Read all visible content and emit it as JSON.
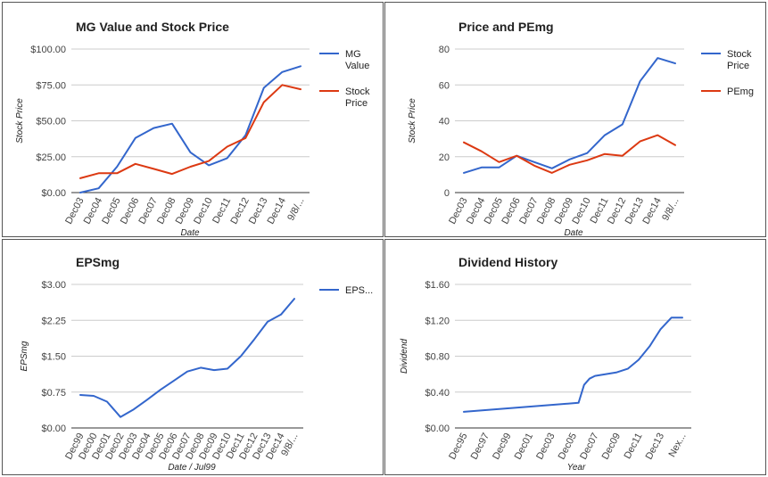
{
  "colors": {
    "blue": "#3366cc",
    "red": "#dc3912"
  },
  "chart_data": [
    {
      "type": "line",
      "title": "MG Value and Stock Price",
      "xlabel": "Date",
      "ylabel": "Stock Price",
      "categories": [
        "Dec03",
        "Dec04",
        "Dec05",
        "Dec06",
        "Dec07",
        "Dec08",
        "Dec09",
        "Dec10",
        "Dec11",
        "Dec12",
        "Dec13",
        "Dec14",
        "9/8/..."
      ],
      "yticks": [
        "$0.00",
        "$25.00",
        "$50.00",
        "$75.00",
        "$100.00"
      ],
      "ylim": [
        0,
        100
      ],
      "grid": true,
      "legend": "right",
      "series": [
        {
          "name": "MG Value",
          "color": "#3366cc",
          "values": [
            0,
            3,
            18,
            38,
            45,
            48,
            28,
            19,
            24,
            40,
            73,
            84,
            88
          ]
        },
        {
          "name": "Stock Price",
          "color": "#dc3912",
          "values": [
            10,
            13.5,
            13.5,
            20,
            16.5,
            13,
            18,
            22,
            32,
            38,
            63,
            75,
            72
          ]
        }
      ]
    },
    {
      "type": "line",
      "title": "Price and PEmg",
      "xlabel": "Date",
      "ylabel": "Stock Price",
      "categories": [
        "Dec03",
        "Dec04",
        "Dec05",
        "Dec06",
        "Dec07",
        "Dec08",
        "Dec09",
        "Dec10",
        "Dec11",
        "Dec12",
        "Dec13",
        "Dec14",
        "9/8/..."
      ],
      "yticks": [
        "0",
        "20",
        "40",
        "60",
        "80"
      ],
      "ylim": [
        0,
        80
      ],
      "grid": true,
      "legend": "right",
      "series": [
        {
          "name": "Stock Price",
          "color": "#3366cc",
          "values": [
            11,
            14,
            14,
            20.5,
            17,
            13.5,
            18.5,
            22,
            32,
            38,
            62,
            75,
            72
          ]
        },
        {
          "name": "PEmg",
          "color": "#dc3912",
          "values": [
            28,
            23,
            17,
            20.5,
            15,
            11,
            15.5,
            18,
            21.5,
            20.5,
            28.5,
            32,
            26.5
          ]
        }
      ]
    },
    {
      "type": "line",
      "title": "EPSmg",
      "xlabel": "Date / Jul99",
      "ylabel": "EPSmg",
      "categories": [
        "Dec99",
        "Dec00",
        "Dec01",
        "Dec02",
        "Dec03",
        "Dec04",
        "Dec05",
        "Dec06",
        "Dec07",
        "Dec08",
        "Dec09",
        "Dec10",
        "Dec11",
        "Dec12",
        "Dec13",
        "Dec14",
        "9/8/..."
      ],
      "yticks": [
        "$0.00",
        "$0.75",
        "$1.50",
        "$2.25",
        "$3.00"
      ],
      "ylim": [
        0,
        3
      ],
      "grid": true,
      "legend": "right",
      "series": [
        {
          "name": "EPS...",
          "color": "#3366cc",
          "values": [
            0.69,
            0.67,
            0.55,
            0.23,
            0.39,
            0.59,
            0.8,
            0.99,
            1.18,
            1.26,
            1.21,
            1.24,
            1.5,
            1.85,
            2.22,
            2.37,
            2.7
          ]
        }
      ]
    },
    {
      "type": "line",
      "title": "Dividend History",
      "xlabel": "Year",
      "ylabel": "Dividend",
      "categories": [
        "Dec95",
        "Dec97",
        "Dec99",
        "Dec01",
        "Dec03",
        "Dec05",
        "Dec07",
        "Dec09",
        "Dec11",
        "Dec13",
        "Nex..."
      ],
      "yticks": [
        "$0.00",
        "$0.40",
        "$0.80",
        "$1.20",
        "$1.60"
      ],
      "ylim": [
        0,
        1.6
      ],
      "grid": true,
      "legend": "none",
      "x": [
        0,
        10.5,
        11,
        11.5,
        12,
        13,
        14,
        15,
        16,
        17,
        18,
        19,
        20
      ],
      "series": [
        {
          "name": "Dividend",
          "color": "#3366cc",
          "values": [
            0.18,
            0.28,
            0.48,
            0.55,
            0.58,
            0.6,
            0.62,
            0.66,
            0.76,
            0.91,
            1.1,
            1.23,
            1.23
          ]
        }
      ]
    }
  ]
}
